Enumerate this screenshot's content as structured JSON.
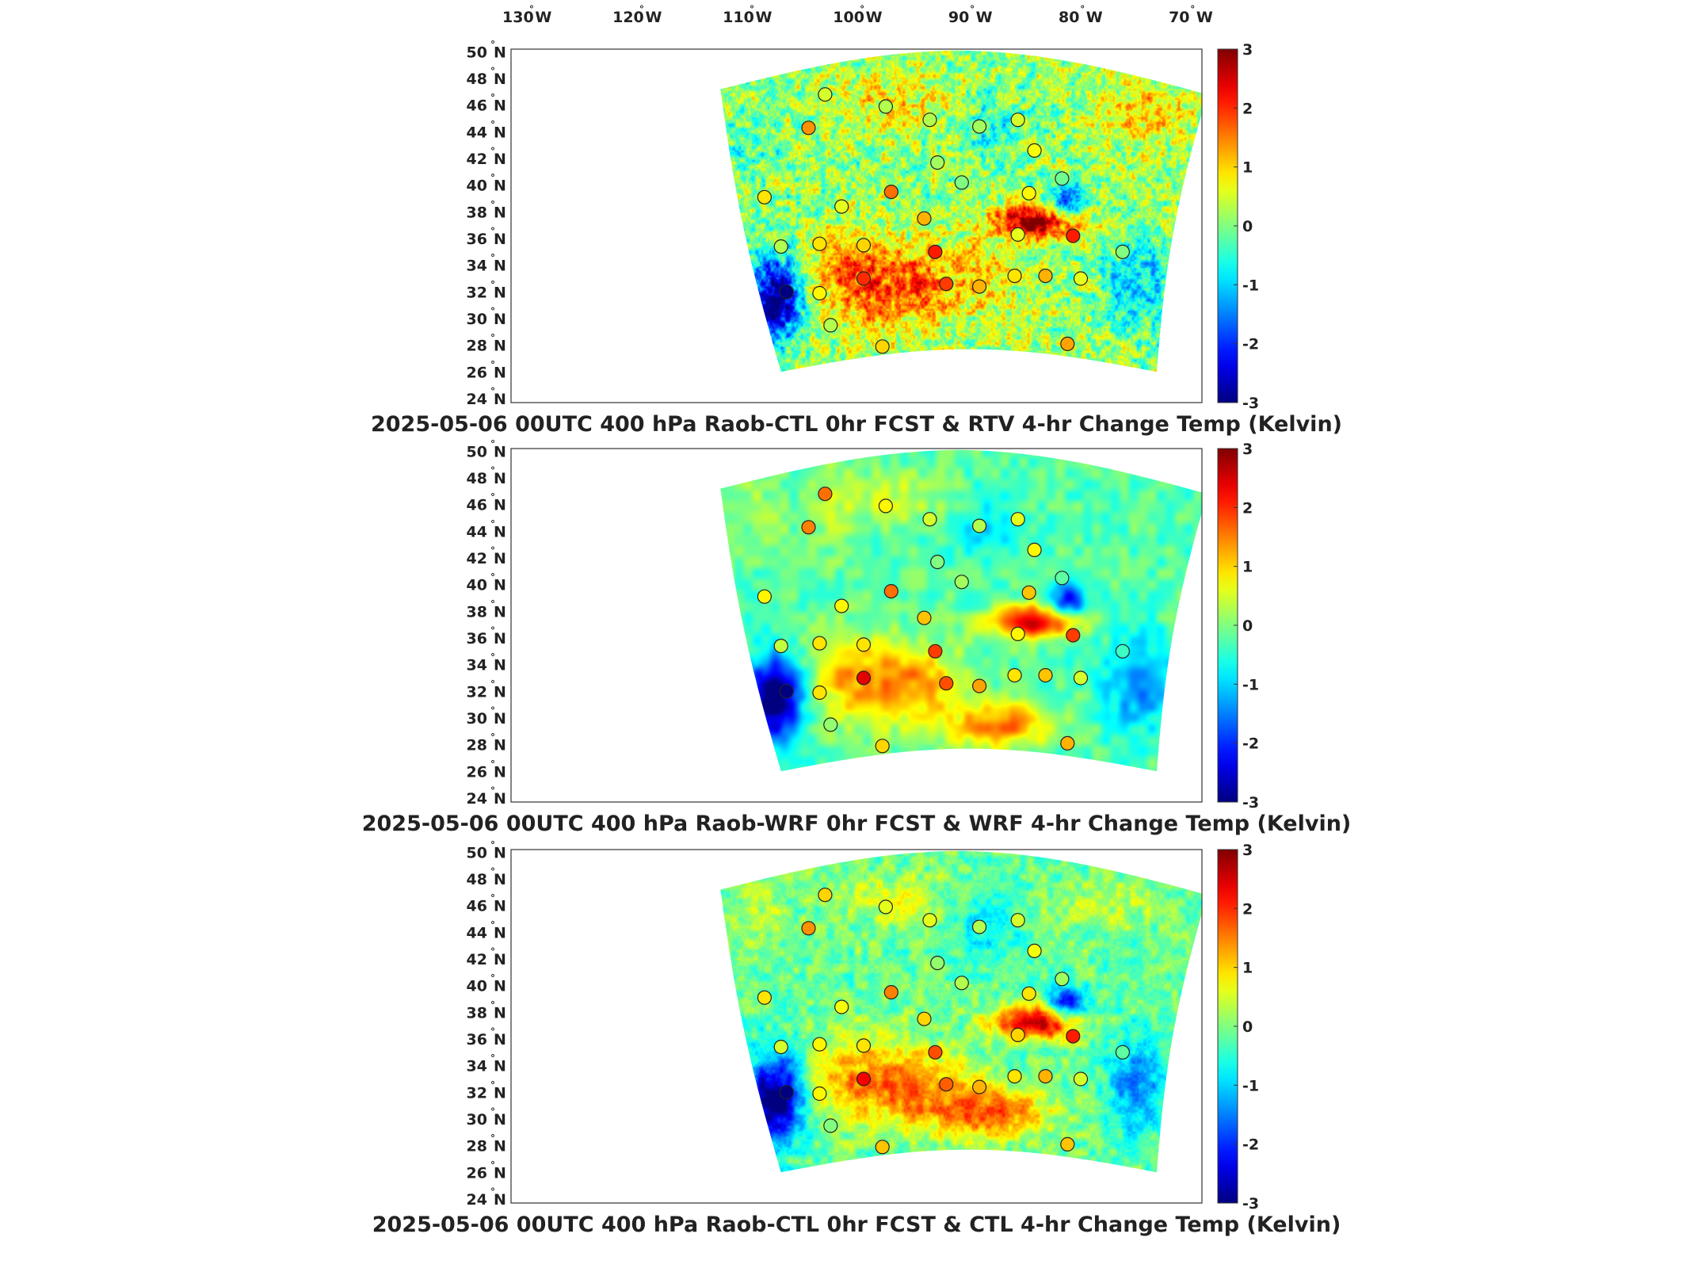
{
  "lon_labels": [
    {
      "num": "130",
      "hemi": "W"
    },
    {
      "num": "120",
      "hemi": "W"
    },
    {
      "num": "110",
      "hemi": "W"
    },
    {
      "num": "100",
      "hemi": "W"
    },
    {
      "num": "90",
      "hemi": "W"
    },
    {
      "num": "80",
      "hemi": "W"
    },
    {
      "num": "70",
      "hemi": "W"
    }
  ],
  "lat_labels": [
    {
      "num": "50",
      "hemi": "N"
    },
    {
      "num": "48",
      "hemi": "N"
    },
    {
      "num": "46",
      "hemi": "N"
    },
    {
      "num": "44",
      "hemi": "N"
    },
    {
      "num": "42",
      "hemi": "N"
    },
    {
      "num": "40",
      "hemi": "N"
    },
    {
      "num": "38",
      "hemi": "N"
    },
    {
      "num": "36",
      "hemi": "N"
    },
    {
      "num": "34",
      "hemi": "N"
    },
    {
      "num": "32",
      "hemi": "N"
    },
    {
      "num": "30",
      "hemi": "N"
    },
    {
      "num": "28",
      "hemi": "N"
    },
    {
      "num": "26",
      "hemi": "N"
    },
    {
      "num": "24",
      "hemi": "N"
    }
  ],
  "colorbar": {
    "min": -3,
    "max": 3,
    "ticks": [
      "3",
      "2",
      "1",
      "0",
      "-1",
      "-2",
      "-3"
    ],
    "colormap": "jet"
  },
  "panels": [
    {
      "title": "2025-05-06 00UTC 400 hPa Raob-CTL 0hr FCST & RTV 4-hr Change Temp (Kelvin)",
      "variant": "rtv"
    },
    {
      "title": "2025-05-06 00UTC 400 hPa Raob-WRF 0hr FCST & WRF 4-hr Change Temp (Kelvin)",
      "variant": "wrf"
    },
    {
      "title": "2025-05-06 00UTC 400 hPa Raob-CTL 0hr FCST & CTL 4-hr Change Temp (Kelvin)",
      "variant": "ctl"
    }
  ],
  "stations": [
    {
      "lon": -103.0,
      "lat": 46.8,
      "values": [
        0.5,
        1.6,
        1.0
      ]
    },
    {
      "lon": -97.5,
      "lat": 45.9,
      "values": [
        0.3,
        0.8,
        0.6
      ]
    },
    {
      "lon": -104.5,
      "lat": 44.3,
      "values": [
        1.4,
        1.5,
        1.4
      ]
    },
    {
      "lon": -93.5,
      "lat": 44.9,
      "values": [
        0.3,
        0.5,
        0.6
      ]
    },
    {
      "lon": -85.5,
      "lat": 44.9,
      "values": [
        0.5,
        0.6,
        0.5
      ]
    },
    {
      "lon": -89.0,
      "lat": 44.4,
      "values": [
        0.2,
        0.3,
        0.3
      ]
    },
    {
      "lon": -84.0,
      "lat": 42.6,
      "values": [
        0.7,
        0.8,
        0.7
      ]
    },
    {
      "lon": -92.8,
      "lat": 41.7,
      "values": [
        0.2,
        0.0,
        0.1
      ]
    },
    {
      "lon": -90.6,
      "lat": 40.2,
      "values": [
        0.0,
        0.2,
        0.3
      ]
    },
    {
      "lon": -81.5,
      "lat": 40.5,
      "values": [
        -0.1,
        -0.2,
        0.2
      ]
    },
    {
      "lon": -84.5,
      "lat": 39.4,
      "values": [
        0.8,
        1.1,
        0.9
      ]
    },
    {
      "lon": -108.5,
      "lat": 39.1,
      "values": [
        0.9,
        0.8,
        0.9
      ]
    },
    {
      "lon": -101.5,
      "lat": 38.4,
      "values": [
        0.6,
        0.8,
        0.7
      ]
    },
    {
      "lon": -97.0,
      "lat": 39.5,
      "values": [
        1.6,
        1.6,
        1.5
      ]
    },
    {
      "lon": -94.0,
      "lat": 37.5,
      "values": [
        1.2,
        1.1,
        1.0
      ]
    },
    {
      "lon": -85.5,
      "lat": 36.3,
      "values": [
        0.6,
        0.8,
        1.0
      ]
    },
    {
      "lon": -80.5,
      "lat": 36.2,
      "values": [
        2.1,
        1.9,
        2.1
      ]
    },
    {
      "lon": -107.0,
      "lat": 35.4,
      "values": [
        0.3,
        0.4,
        0.5
      ]
    },
    {
      "lon": -103.5,
      "lat": 35.6,
      "values": [
        0.9,
        0.9,
        0.8
      ]
    },
    {
      "lon": -99.5,
      "lat": 35.5,
      "values": [
        1.0,
        0.9,
        0.9
      ]
    },
    {
      "lon": -93.0,
      "lat": 35.0,
      "values": [
        2.1,
        1.9,
        1.8
      ]
    },
    {
      "lon": -76.0,
      "lat": 35.0,
      "values": [
        0.0,
        -0.4,
        -0.2
      ]
    },
    {
      "lon": -99.5,
      "lat": 33.0,
      "values": [
        2.0,
        2.4,
        2.3
      ]
    },
    {
      "lon": -92.0,
      "lat": 32.6,
      "values": [
        1.9,
        1.8,
        1.7
      ]
    },
    {
      "lon": -89.0,
      "lat": 32.4,
      "values": [
        1.2,
        1.3,
        1.2
      ]
    },
    {
      "lon": -85.8,
      "lat": 33.2,
      "values": [
        0.9,
        0.9,
        0.9
      ]
    },
    {
      "lon": -83.0,
      "lat": 33.2,
      "values": [
        1.2,
        1.1,
        1.2
      ]
    },
    {
      "lon": -79.8,
      "lat": 33.0,
      "values": [
        0.6,
        0.5,
        0.5
      ]
    },
    {
      "lon": -106.5,
      "lat": 32.0,
      "values": [
        -3.0,
        -3.0,
        -3.0
      ]
    },
    {
      "lon": -103.5,
      "lat": 31.9,
      "values": [
        0.8,
        0.9,
        0.8
      ]
    },
    {
      "lon": -102.5,
      "lat": 29.5,
      "values": [
        0.3,
        0.1,
        0.0
      ]
    },
    {
      "lon": -97.8,
      "lat": 27.9,
      "values": [
        1.0,
        1.0,
        1.1
      ]
    },
    {
      "lon": -81.0,
      "lat": 28.1,
      "values": [
        1.3,
        1.2,
        1.1
      ]
    }
  ]
}
